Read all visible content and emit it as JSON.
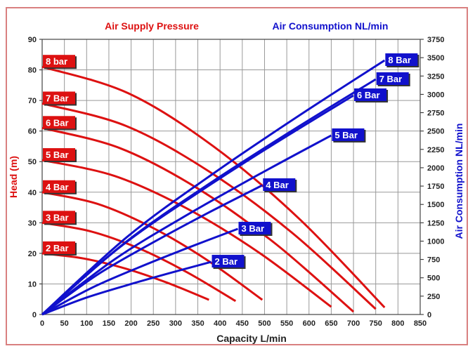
{
  "chart_data": {
    "type": "line",
    "titles": {
      "left": "Air Supply Pressure",
      "right": "Air Consumption NL/min"
    },
    "xlabel": "Capacity L/min",
    "ylabel_left": "Head (m)",
    "ylabel_right": "Air Consumption NL/min",
    "xlim": [
      0,
      850
    ],
    "ylim_left": [
      0,
      90
    ],
    "ylim_right": [
      0,
      3750
    ],
    "xticks": [
      0,
      50,
      100,
      150,
      200,
      250,
      300,
      350,
      400,
      450,
      500,
      550,
      600,
      650,
      700,
      750,
      800,
      850
    ],
    "yticks_left": [
      0,
      10,
      20,
      30,
      40,
      50,
      60,
      70,
      80,
      90
    ],
    "yticks_right": [
      0,
      250,
      500,
      750,
      1000,
      1250,
      1500,
      1750,
      2000,
      2250,
      2500,
      2750,
      3000,
      3250,
      3500,
      3750
    ],
    "grid": true,
    "colors": {
      "head": "#dd1111",
      "air": "#1111cc",
      "frame": "#d98080"
    },
    "head_series": [
      {
        "name": "2 Bar",
        "x": [
          0,
          94,
          188,
          281,
          375
        ],
        "y": [
          20,
          18.3,
          15.0,
          10.4,
          4.8
        ]
      },
      {
        "name": "3 Bar",
        "x": [
          0,
          109,
          218,
          326,
          435
        ],
        "y": [
          30,
          27.2,
          21.6,
          13.8,
          4.4
        ]
      },
      {
        "name": "4 Bar",
        "x": [
          0,
          124,
          248,
          371,
          495
        ],
        "y": [
          40,
          36.2,
          28.4,
          17.8,
          4.8
        ]
      },
      {
        "name": "5 Bar",
        "x": [
          0,
          163,
          325,
          488,
          650
        ],
        "y": [
          50.5,
          45.3,
          34.7,
          20.2,
          2.5
        ]
      },
      {
        "name": "6 Bar",
        "x": [
          0,
          175,
          350,
          525,
          700
        ],
        "y": [
          61,
          54.4,
          41.2,
          23.1,
          0.9
        ]
      },
      {
        "name": "7 Bar",
        "x": [
          0,
          188,
          375,
          563,
          750
        ],
        "y": [
          69,
          61.7,
          46.8,
          26.6,
          1.8
        ]
      },
      {
        "name": "8 bar",
        "x": [
          0,
          193,
          385,
          578,
          770
        ],
        "y": [
          81,
          72.4,
          55.0,
          31.3,
          2.3
        ]
      }
    ],
    "air_series": [
      {
        "name": "2 Bar",
        "x": [
          0,
          95,
          190,
          285,
          380
        ],
        "y": [
          0,
          221,
          398,
          561,
          717
        ]
      },
      {
        "name": "3 Bar",
        "x": [
          0,
          110,
          220,
          330,
          440
        ],
        "y": [
          0,
          359,
          648,
          914,
          1167
        ]
      },
      {
        "name": "4 Bar",
        "x": [
          0,
          124,
          248,
          371,
          495
        ],
        "y": [
          0,
          542,
          977,
          1378,
          1760
        ]
      },
      {
        "name": "5 Bar",
        "x": [
          0,
          163,
          325,
          488,
          650
        ],
        "y": [
          0,
          752,
          1354,
          1911,
          2440
        ]
      },
      {
        "name": "6 Bar",
        "x": [
          0,
          175,
          350,
          525,
          700
        ],
        "y": [
          0,
          919,
          1657,
          2337,
          2985
        ]
      },
      {
        "name": "7 Bar",
        "x": [
          0,
          188,
          375,
          563,
          750
        ],
        "y": [
          0,
          987,
          1779,
          2510,
          3205
        ]
      },
      {
        "name": "8 Bar",
        "x": [
          0,
          193,
          385,
          578,
          770
        ],
        "y": [
          0,
          1067,
          1922,
          2712,
          3463
        ]
      }
    ]
  }
}
